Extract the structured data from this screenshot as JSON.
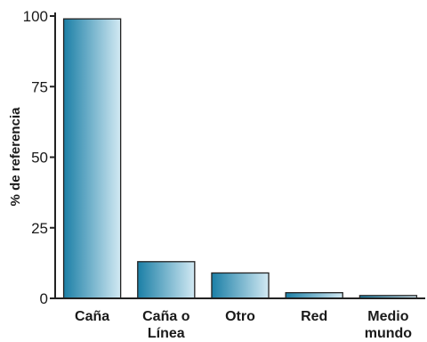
{
  "chart_data": {
    "type": "bar",
    "ylabel": "% de referencia",
    "xlabel": "",
    "ylim": [
      0,
      100
    ],
    "yticks": [
      "0",
      "25",
      "50",
      "75",
      "100"
    ],
    "categories": [
      [
        "Caña"
      ],
      [
        "Caña o",
        "Línea"
      ],
      [
        "Otro"
      ],
      [
        "Red"
      ],
      [
        "Medio",
        "mundo"
      ]
    ],
    "values": [
      99,
      13,
      9,
      2,
      1
    ],
    "colors": {
      "bar_dark": "#1b7fa6",
      "bar_light": "#d2e9f3",
      "axis": "#222222"
    }
  }
}
